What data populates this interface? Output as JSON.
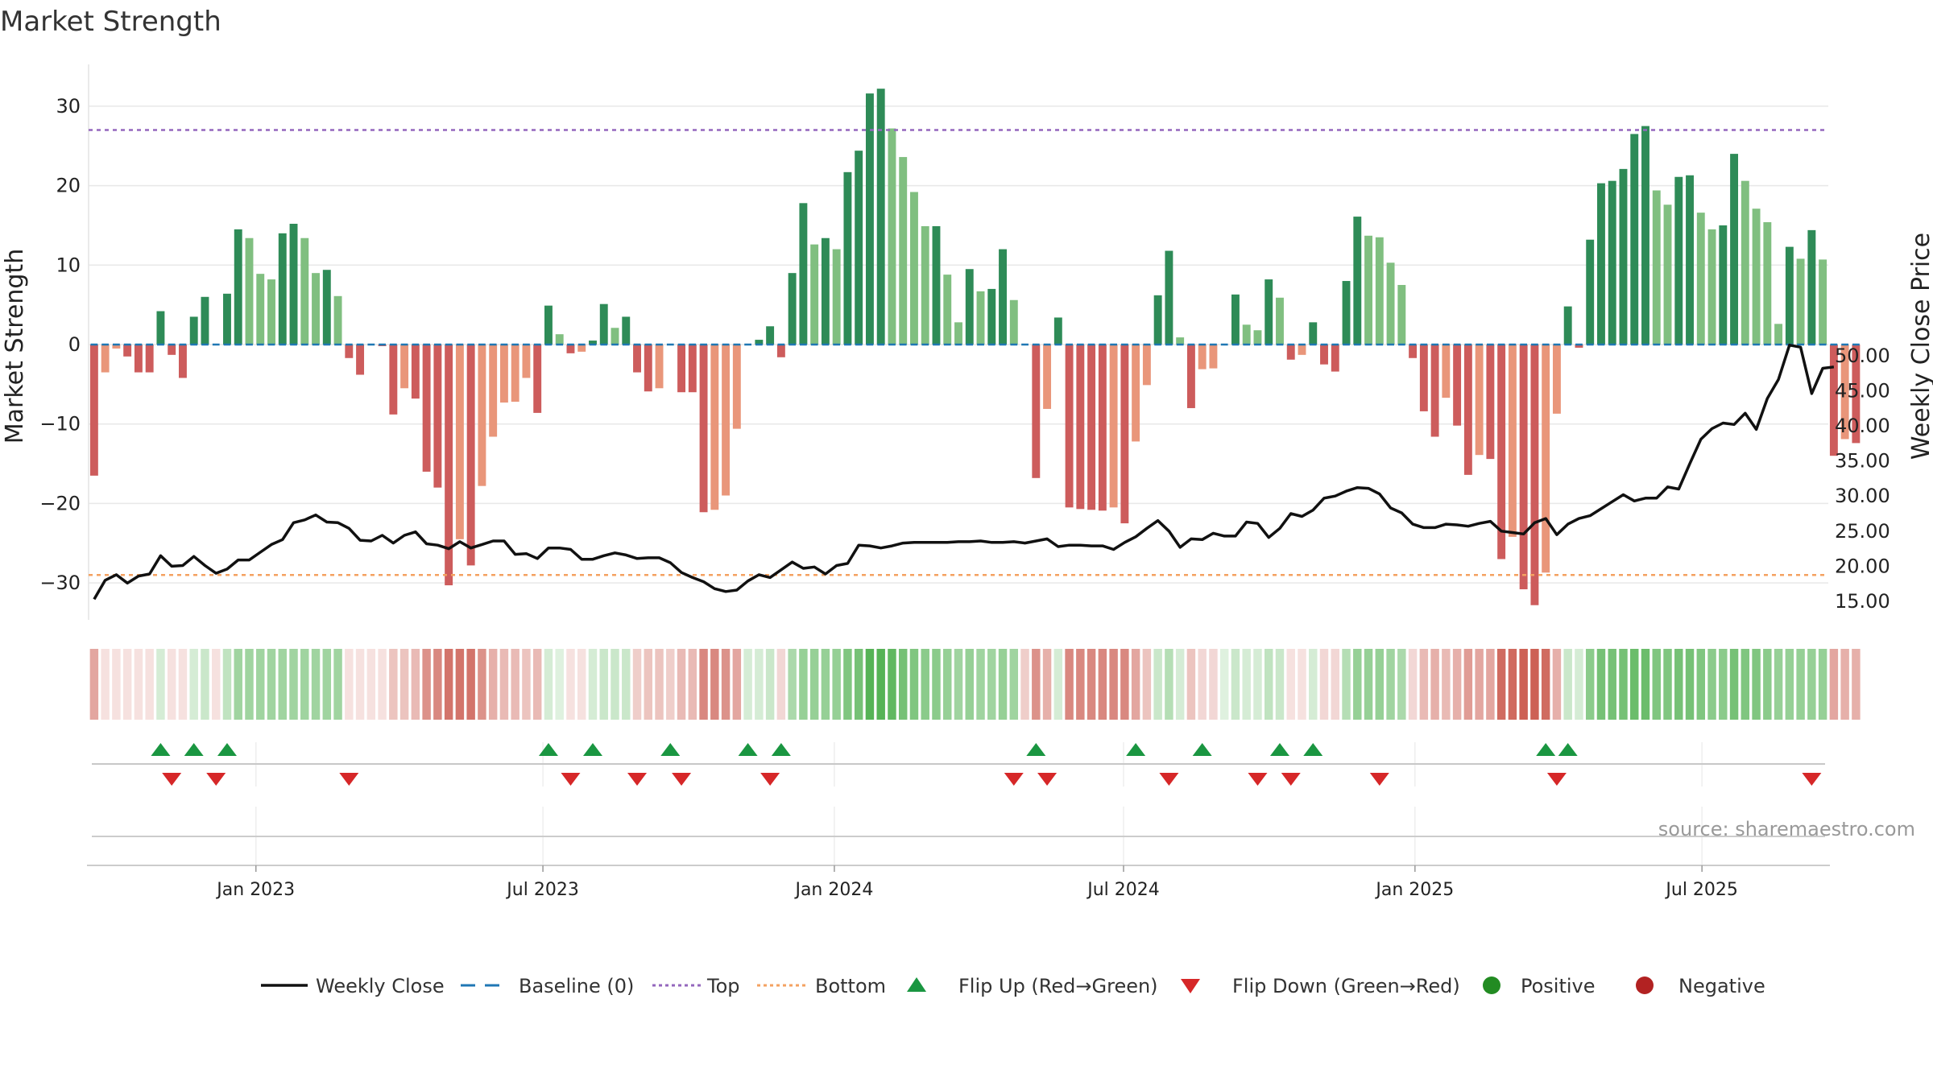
{
  "chart_data": {
    "type": "bar",
    "title": "Market Strength",
    "ylabel": "Market Strength",
    "y2label": "Weekly Close Price",
    "ylim": [
      -35,
      35
    ],
    "y2lim": [
      12,
      54
    ],
    "yticks": [
      30,
      20,
      10,
      0,
      -10,
      -20,
      -30
    ],
    "ytick_labels": [
      "30",
      "20",
      "10",
      "0",
      "−10",
      "−20",
      "−30"
    ],
    "y2ticks": [
      50,
      45,
      40,
      35,
      30,
      25,
      20,
      15
    ],
    "y2tick_labels": [
      "50.00",
      "45.00",
      "40.00",
      "35.00",
      "30.00",
      "25.00",
      "20.00",
      "15.00"
    ],
    "top_level": 27,
    "bottom_level": -29,
    "baseline": 0,
    "xdomain": [
      -0.5,
      156.5
    ],
    "xticks": [
      {
        "label": "Jan 2023",
        "index": 14.6
      },
      {
        "label": "Jul 2023",
        "index": 40.5
      },
      {
        "label": "Jan 2024",
        "index": 66.8
      },
      {
        "label": "Jul 2024",
        "index": 92.9
      },
      {
        "label": "Jan 2025",
        "index": 119.2
      },
      {
        "label": "Jul 2025",
        "index": 145.1
      }
    ],
    "strength": [
      -16.5,
      -3.5,
      -0.5,
      -1.5,
      -3.5,
      -3.5,
      4.2,
      -1.3,
      -4.2,
      3.5,
      6.0,
      0,
      6.4,
      14.5,
      13.4,
      8.9,
      8.2,
      14.0,
      15.2,
      13.4,
      9.0,
      9.4,
      6.1,
      -1.7,
      -3.8,
      0,
      -0.2,
      -8.8,
      -5.5,
      -6.8,
      -16.0,
      -18.0,
      -30.3,
      -24.5,
      -27.8,
      -17.8,
      -11.6,
      -7.3,
      -7.2,
      -4.2,
      -8.6,
      4.9,
      1.3,
      -1.1,
      -0.9,
      0.5,
      5.1,
      2.1,
      3.5,
      -3.5,
      -5.9,
      -5.5,
      0,
      -6.0,
      -6.0,
      -21.1,
      -20.8,
      -19.0,
      -10.6,
      0,
      0.6,
      2.3,
      -1.6,
      9.0,
      17.8,
      12.6,
      13.4,
      12.0,
      21.7,
      24.4,
      31.6,
      32.2,
      27.2,
      23.6,
      19.2,
      14.9,
      14.9,
      8.8,
      2.8,
      9.5,
      6.7,
      7.0,
      12.0,
      5.6,
      0,
      -16.8,
      -8.1,
      3.4,
      -20.5,
      -20.7,
      -20.8,
      -20.9,
      -20.5,
      -22.5,
      -12.2,
      -5.1,
      6.2,
      11.8,
      0.9,
      -8.0,
      -3.1,
      -3.0,
      0,
      6.3,
      2.5,
      1.8,
      8.2,
      5.9,
      -1.9,
      -1.3,
      2.8,
      -2.5,
      -3.4,
      8.0,
      16.1,
      13.7,
      13.5,
      10.3,
      7.5,
      -1.7,
      -8.4,
      -11.6,
      -6.7,
      -10.2,
      -16.4,
      -13.9,
      -14.4,
      -27.0,
      -24.2,
      -30.8,
      -32.8,
      -28.7,
      -8.7,
      4.8,
      -0.4,
      13.2,
      20.3,
      20.6,
      22.1,
      26.5,
      27.5,
      19.4,
      17.6,
      21.1,
      21.3,
      16.6,
      14.5,
      15.0,
      24.0,
      20.6,
      17.1,
      15.4,
      2.6,
      12.3,
      10.8,
      14.4,
      10.7,
      -14.0,
      -11.9,
      -12.4
    ],
    "price": [
      15.3,
      18.0,
      18.8,
      17.6,
      18.6,
      18.9,
      21.5,
      20.0,
      20.1,
      21.4,
      20.1,
      19.0,
      19.6,
      20.9,
      20.9,
      22.0,
      23.1,
      23.8,
      26.2,
      26.6,
      27.3,
      26.3,
      26.2,
      25.4,
      23.7,
      23.6,
      24.4,
      23.3,
      24.4,
      24.9,
      23.2,
      23.0,
      22.5,
      23.5,
      22.6,
      23.1,
      23.6,
      23.6,
      21.7,
      21.8,
      21.1,
      22.6,
      22.6,
      22.4,
      21.0,
      21.0,
      21.5,
      21.9,
      21.6,
      21.1,
      21.2,
      21.2,
      20.5,
      19.1,
      18.4,
      17.8,
      16.8,
      16.4,
      16.6,
      17.9,
      18.8,
      18.4,
      19.5,
      20.6,
      19.7,
      19.9,
      18.9,
      20.1,
      20.4,
      23.0,
      22.9,
      22.6,
      22.9,
      23.3,
      23.4,
      23.4,
      23.4,
      23.4,
      23.5,
      23.5,
      23.6,
      23.4,
      23.4,
      23.5,
      23.3,
      23.6,
      23.9,
      22.8,
      23.0,
      23.0,
      22.9,
      22.9,
      22.4,
      23.4,
      24.2,
      25.4,
      26.5,
      25.0,
      22.7,
      23.9,
      23.8,
      24.7,
      24.3,
      24.3,
      26.3,
      26.1,
      24.1,
      25.4,
      27.5,
      27.1,
      28.0,
      29.7,
      30.0,
      30.7,
      31.2,
      31.1,
      30.3,
      28.3,
      27.6,
      26.0,
      25.5,
      25.5,
      26.0,
      25.9,
      25.7,
      26.1,
      26.4,
      25.0,
      24.8,
      24.6,
      26.2,
      26.8,
      24.5,
      26.0,
      26.8,
      27.2,
      28.2,
      29.2,
      30.2,
      29.3,
      29.7,
      29.7,
      31.3,
      31.0,
      34.6,
      38.1,
      39.6,
      40.4,
      40.2,
      41.8,
      39.5,
      43.9,
      46.6,
      51.5,
      51.2,
      44.6,
      48.2,
      48.4
    ],
    "strip_intensity": [
      -0.45,
      -0.15,
      -0.15,
      -0.15,
      -0.15,
      -0.15,
      0.2,
      -0.15,
      -0.15,
      0.2,
      0.25,
      -0.15,
      0.3,
      0.45,
      0.45,
      0.45,
      0.45,
      0.45,
      0.45,
      0.45,
      0.45,
      0.45,
      0.45,
      -0.15,
      -0.15,
      -0.15,
      -0.15,
      -0.3,
      -0.3,
      -0.35,
      -0.55,
      -0.6,
      -0.7,
      -0.7,
      -0.7,
      -0.55,
      -0.4,
      -0.35,
      -0.35,
      -0.3,
      -0.35,
      0.2,
      0.15,
      -0.15,
      -0.15,
      0.2,
      0.25,
      0.25,
      0.25,
      -0.25,
      -0.3,
      -0.3,
      -0.25,
      -0.35,
      -0.35,
      -0.6,
      -0.6,
      -0.55,
      -0.45,
      0.2,
      0.2,
      0.25,
      -0.2,
      0.4,
      0.5,
      0.5,
      0.5,
      0.5,
      0.6,
      0.65,
      0.8,
      0.8,
      0.75,
      0.65,
      0.6,
      0.55,
      0.55,
      0.5,
      0.45,
      0.5,
      0.45,
      0.45,
      0.5,
      0.45,
      -0.25,
      -0.55,
      -0.4,
      0.2,
      -0.6,
      -0.6,
      -0.6,
      -0.6,
      -0.6,
      -0.6,
      -0.45,
      -0.3,
      0.25,
      0.35,
      0.2,
      -0.3,
      -0.2,
      -0.2,
      0.15,
      0.25,
      0.2,
      0.2,
      0.3,
      0.25,
      -0.15,
      -0.15,
      0.2,
      -0.2,
      -0.2,
      0.35,
      0.5,
      0.5,
      0.5,
      0.45,
      0.4,
      -0.2,
      -0.35,
      -0.4,
      -0.35,
      -0.4,
      -0.5,
      -0.45,
      -0.45,
      -0.75,
      -0.75,
      -0.8,
      -0.8,
      -0.75,
      -0.4,
      0.25,
      0.2,
      0.55,
      0.65,
      0.65,
      0.65,
      0.7,
      0.7,
      0.6,
      0.6,
      0.65,
      0.65,
      0.6,
      0.55,
      0.55,
      0.65,
      0.6,
      0.6,
      0.55,
      0.5,
      0.5,
      0.5,
      0.5,
      0.5,
      -0.45,
      -0.4,
      -0.4
    ],
    "flip_up": [
      6,
      9,
      12,
      41,
      45,
      52,
      59,
      62,
      85,
      94,
      100,
      107,
      110,
      131,
      133
    ],
    "flip_down": [
      7,
      11,
      23,
      43,
      49,
      53,
      61,
      83,
      86,
      97,
      105,
      108,
      116,
      132,
      155
    ],
    "legend": [
      {
        "label": "Weekly Close",
        "symbol": "line"
      },
      {
        "label": "Baseline (0)",
        "symbol": "dash"
      },
      {
        "label": "Top",
        "symbol": "dot-purple"
      },
      {
        "label": "Bottom",
        "symbol": "dot-orange"
      },
      {
        "label": "Flip Up (Red→Green)",
        "symbol": "triangle-up"
      },
      {
        "label": "Flip Down (Green→Red)",
        "symbol": "triangle-down"
      },
      {
        "label": "Positive",
        "symbol": "circle-green"
      },
      {
        "label": "Negative",
        "symbol": "circle-red"
      }
    ],
    "source": "source: sharemaestro.com"
  },
  "colors": {
    "pos_strong": "#2e8b57",
    "pos_light": "#80bf80",
    "neg_strong": "#cd5c5c",
    "neg_light": "#e9967a",
    "price_line": "#111111",
    "baseline": "#1f77b4",
    "top": "#9467bd",
    "bottom": "#f4a261",
    "flip_up": "#1a9641",
    "flip_down": "#d62728",
    "positive_dot": "#228b22",
    "negative_dot": "#b22222"
  }
}
